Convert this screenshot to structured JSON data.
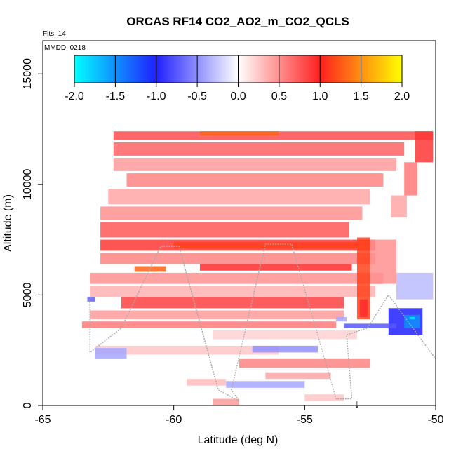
{
  "chart_data": {
    "type": "heatmap",
    "title": "ORCAS RF14 CO2_AO2_m_CO2_QCLS",
    "annotations": {
      "flights": "Flts: 14",
      "date": "MMDD: 0218"
    },
    "xlabel": "Latitude (deg N)",
    "ylabel": "Altitude (m)",
    "xlim": [
      -65,
      -50
    ],
    "ylim": [
      0,
      16500
    ],
    "x_ticks": [
      -65,
      -60,
      -55,
      -50
    ],
    "y_ticks": [
      0,
      5000,
      10000,
      15000
    ],
    "grid": false,
    "colorbar": {
      "placement": "top-inside",
      "range": [
        -2.0,
        2.0
      ],
      "tick_values": [
        -2.0,
        -1.5,
        -1.0,
        -0.5,
        0.0,
        0.5,
        1.0,
        1.5,
        2.0
      ],
      "tick_labels": [
        "-2.0",
        "-1.5",
        "-1.0",
        "-0.5",
        "0.0",
        "0.5",
        "1.0",
        "1.5",
        "2.0"
      ],
      "stops": [
        {
          "value": -2.0,
          "color": "#00ffff"
        },
        {
          "value": -1.0,
          "color": "#2020ff"
        },
        {
          "value": 0.0,
          "color": "#ffffff"
        },
        {
          "value": 1.0,
          "color": "#ff2020"
        },
        {
          "value": 2.0,
          "color": "#ffff00"
        }
      ]
    },
    "bands": [
      {
        "lat": [
          -62.3,
          -50.1
        ],
        "alt": [
          12000,
          12400
        ],
        "value": 0.8
      },
      {
        "lat": [
          -59.0,
          -56.0
        ],
        "alt": [
          12200,
          12400
        ],
        "value": 1.3
      },
      {
        "lat": [
          -62.3,
          -51.2
        ],
        "alt": [
          11300,
          11900
        ],
        "value": 0.7
      },
      {
        "lat": [
          -62.3,
          -51.5
        ],
        "alt": [
          10600,
          11200
        ],
        "value": 0.45
      },
      {
        "lat": [
          -61.8,
          -52.0
        ],
        "alt": [
          9900,
          10500
        ],
        "value": 0.55
      },
      {
        "lat": [
          -62.5,
          -52.5
        ],
        "alt": [
          9100,
          9800
        ],
        "value": 0.4
      },
      {
        "lat": [
          -62.8,
          -52.8
        ],
        "alt": [
          8400,
          9000
        ],
        "value": 0.5
      },
      {
        "lat": [
          -62.8,
          -53.3
        ],
        "alt": [
          7600,
          8300
        ],
        "value": 0.75
      },
      {
        "lat": [
          -62.8,
          -52.3
        ],
        "alt": [
          7000,
          7500
        ],
        "value": 0.9
      },
      {
        "lat": [
          -60.0,
          -53.0
        ],
        "alt": [
          7100,
          7400
        ],
        "value": 1.15
      },
      {
        "lat": [
          -62.8,
          -52.3
        ],
        "alt": [
          6400,
          6900
        ],
        "value": 0.55
      },
      {
        "lat": [
          -59.0,
          -53.2
        ],
        "alt": [
          6100,
          6400
        ],
        "value": 0.95
      },
      {
        "lat": [
          -61.5,
          -60.3
        ],
        "alt": [
          6050,
          6300
        ],
        "value": 1.3
      },
      {
        "lat": [
          -63.2,
          -52.0
        ],
        "alt": [
          5500,
          6000
        ],
        "value": 0.5
      },
      {
        "lat": [
          -63.2,
          -52.3
        ],
        "alt": [
          4900,
          5400
        ],
        "value": 0.35
      },
      {
        "lat": [
          -62.0,
          -53.5
        ],
        "alt": [
          4400,
          4900
        ],
        "value": 0.85
      },
      {
        "lat": [
          -63.2,
          -53.5
        ],
        "alt": [
          3900,
          4300
        ],
        "value": 0.45
      },
      {
        "lat": [
          -63.5,
          -53.8
        ],
        "alt": [
          3500,
          3800
        ],
        "value": 0.6
      },
      {
        "lat": [
          -53.0,
          -52.5
        ],
        "alt": [
          3900,
          7600
        ],
        "value": 1.15
      },
      {
        "lat": [
          -52.9,
          -52.6
        ],
        "alt": [
          4000,
          4800
        ],
        "value": 0.95
      },
      {
        "lat": [
          -52.5,
          -51.5
        ],
        "alt": [
          5500,
          7500
        ],
        "value": 0.5
      },
      {
        "lat": [
          -58.5,
          -53.0
        ],
        "alt": [
          3000,
          3400
        ],
        "value": 0.2
      },
      {
        "lat": [
          -63.0,
          -56.0
        ],
        "alt": [
          2300,
          2700
        ],
        "value": 0.25
      },
      {
        "lat": [
          -63.0,
          -61.8
        ],
        "alt": [
          2100,
          2600
        ],
        "value": -0.4
      },
      {
        "lat": [
          -57.0,
          -54.5
        ],
        "alt": [
          2400,
          2700
        ],
        "value": -0.5
      },
      {
        "lat": [
          -57.5,
          -52.5
        ],
        "alt": [
          1700,
          2100
        ],
        "value": 0.55
      },
      {
        "lat": [
          -56.5,
          -54.0
        ],
        "alt": [
          1200,
          1500
        ],
        "value": 0.4
      },
      {
        "lat": [
          -59.5,
          -58.0
        ],
        "alt": [
          900,
          1200
        ],
        "value": 0.3
      },
      {
        "lat": [
          -58.0,
          -55.0
        ],
        "alt": [
          800,
          1100
        ],
        "value": -0.4
      },
      {
        "lat": [
          -58.5,
          -57.5
        ],
        "alt": [
          0,
          300
        ],
        "value": 0.45
      },
      {
        "lat": [
          -55.0,
          -53.5
        ],
        "alt": [
          200,
          500
        ],
        "value": 0.25
      },
      {
        "lat": [
          -50.8,
          -50.1
        ],
        "alt": [
          11000,
          12400
        ],
        "value": 0.9
      },
      {
        "lat": [
          -51.2,
          -50.7
        ],
        "alt": [
          9500,
          11000
        ],
        "value": 0.6
      },
      {
        "lat": [
          -51.7,
          -51.1
        ],
        "alt": [
          8500,
          9500
        ],
        "value": 0.4
      },
      {
        "lat": [
          -51.5,
          -50.1
        ],
        "alt": [
          4800,
          6000
        ],
        "value": -0.3
      },
      {
        "lat": [
          -51.8,
          -50.5
        ],
        "alt": [
          3200,
          4400
        ],
        "value": -1.0
      },
      {
        "lat": [
          -51.2,
          -50.6
        ],
        "alt": [
          3500,
          4100
        ],
        "value": -1.5
      },
      {
        "lat": [
          -53.5,
          -51.5
        ],
        "alt": [
          3500,
          3700
        ],
        "value": -0.75
      },
      {
        "lat": [
          -51.0,
          -50.8
        ],
        "alt": [
          3900,
          4000
        ],
        "value": -1.9
      },
      {
        "lat": [
          -63.3,
          -63.0
        ],
        "alt": [
          4700,
          4900
        ],
        "value": -0.7
      },
      {
        "lat": [
          -53.8,
          -53.4
        ],
        "alt": [
          3800,
          4000
        ],
        "value": -0.4
      }
    ],
    "flight_track": {
      "lat": [
        -63.2,
        -63.2,
        -62.0,
        -60.5,
        -59.8,
        -58.3,
        -57.5,
        -57.8,
        -56.5,
        -55.5,
        -53.8,
        -53.2,
        -53.4,
        -52.6,
        -51.8,
        -50.0
      ],
      "alt": [
        4800,
        2400,
        3500,
        7200,
        7200,
        700,
        200,
        700,
        7300,
        7300,
        300,
        300,
        3200,
        3500,
        5000,
        2100
      ]
    },
    "marker": {
      "label": "↓",
      "lat": -53.0,
      "alt": 0
    }
  }
}
